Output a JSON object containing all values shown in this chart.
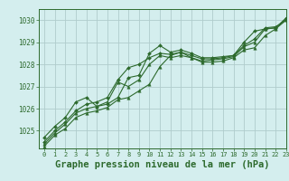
{
  "background_color": "#d4eeee",
  "grid_color": "#b0cccc",
  "line_color": "#2d6a2d",
  "xlabel": "Graphe pression niveau de la mer (hPa)",
  "xlabel_fontsize": 7.5,
  "xlim": [
    -0.5,
    23
  ],
  "ylim": [
    1024.2,
    1030.5
  ],
  "yticks": [
    1025,
    1026,
    1027,
    1028,
    1029,
    1030
  ],
  "xticks": [
    0,
    1,
    2,
    3,
    4,
    5,
    6,
    7,
    8,
    9,
    10,
    11,
    12,
    13,
    14,
    15,
    16,
    17,
    18,
    19,
    20,
    21,
    22,
    23
  ],
  "series": [
    {
      "x": [
        0,
        1,
        2,
        3,
        4,
        5,
        6,
        7,
        8,
        9,
        10,
        11,
        12,
        13,
        14,
        15,
        16,
        17,
        18,
        19,
        20,
        21,
        22,
        23
      ],
      "y": [
        1024.7,
        1025.2,
        1025.6,
        1026.3,
        1026.5,
        1026.1,
        1026.2,
        1026.5,
        1027.4,
        1027.5,
        1028.5,
        1028.85,
        1028.55,
        1028.65,
        1028.5,
        1028.3,
        1028.3,
        1028.35,
        1028.4,
        1029.0,
        1029.5,
        1029.6,
        1029.65,
        1030.1
      ],
      "marker": "D",
      "markersize": 2.0,
      "linewidth": 0.8
    },
    {
      "x": [
        0,
        1,
        2,
        3,
        4,
        5,
        6,
        7,
        8,
        9,
        10,
        11,
        12,
        13,
        14,
        15,
        16,
        17,
        18,
        19,
        20,
        21,
        22,
        23
      ],
      "y": [
        1024.4,
        1024.9,
        1025.3,
        1025.8,
        1026.0,
        1026.1,
        1026.3,
        1027.2,
        1027.0,
        1027.3,
        1028.0,
        1028.4,
        1028.3,
        1028.4,
        1028.3,
        1028.15,
        1028.2,
        1028.25,
        1028.35,
        1028.8,
        1029.0,
        1029.6,
        1029.65,
        1030.05
      ],
      "marker": "^",
      "markersize": 2.5,
      "linewidth": 0.8
    },
    {
      "x": [
        0,
        1,
        2,
        3,
        4,
        5,
        6,
        7,
        8,
        9,
        10,
        11,
        12,
        13,
        14,
        15,
        16,
        17,
        18,
        19,
        20,
        21,
        22,
        23
      ],
      "y": [
        1024.5,
        1025.0,
        1025.4,
        1025.9,
        1026.2,
        1026.3,
        1026.5,
        1027.3,
        1027.85,
        1028.0,
        1028.3,
        1028.5,
        1028.45,
        1028.55,
        1028.4,
        1028.25,
        1028.25,
        1028.3,
        1028.4,
        1028.85,
        1029.15,
        1029.65,
        1029.7,
        1030.0
      ],
      "marker": "D",
      "markersize": 2.0,
      "linewidth": 0.8
    },
    {
      "x": [
        0,
        1,
        2,
        3,
        4,
        5,
        6,
        7,
        8,
        9,
        10,
        11,
        12,
        13,
        14,
        15,
        16,
        17,
        18,
        19,
        20,
        21,
        22,
        23
      ],
      "y": [
        1024.3,
        1024.8,
        1025.1,
        1025.6,
        1025.8,
        1025.9,
        1026.05,
        1026.4,
        1026.5,
        1026.8,
        1027.1,
        1027.9,
        1028.4,
        1028.55,
        1028.3,
        1028.1,
        1028.1,
        1028.15,
        1028.3,
        1028.65,
        1028.75,
        1029.3,
        1029.6,
        1030.0
      ],
      "marker": "^",
      "markersize": 2.5,
      "linewidth": 0.8
    }
  ]
}
